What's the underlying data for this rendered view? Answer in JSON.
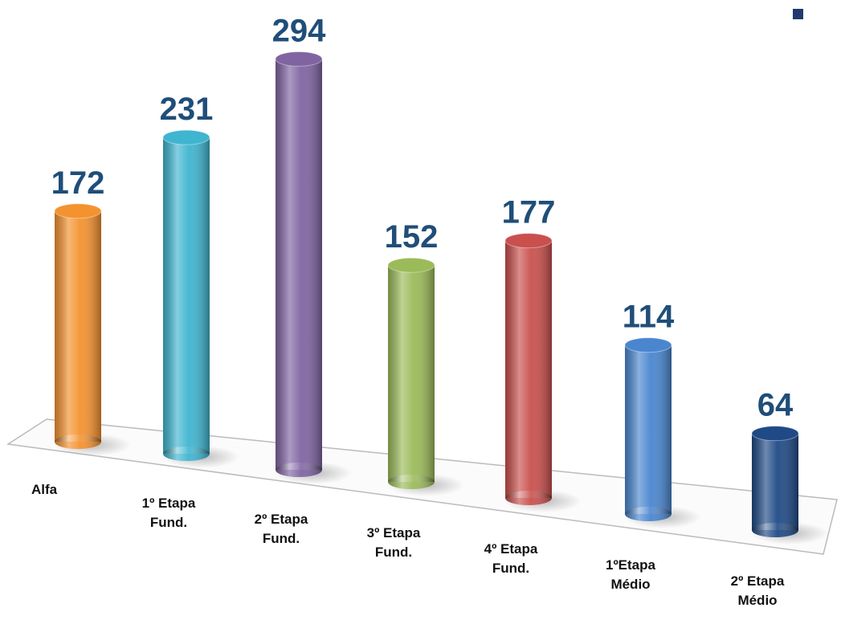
{
  "chart_data": {
    "type": "bar",
    "categories": [
      "Alfa",
      "1º Etapa Fund.",
      "2º Etapa Fund.",
      "3º Etapa Fund.",
      "4º Etapa Fund.",
      "1ºEtapa Médio",
      "2º Etapa Médio"
    ],
    "values": [
      172,
      231,
      294,
      152,
      177,
      114,
      64
    ],
    "colors": [
      "#f4922f",
      "#3fb5d0",
      "#8064a2",
      "#9bbb59",
      "#c9504d",
      "#4a86d0",
      "#1f4a86"
    ],
    "label_color": "#1f4e79"
  }
}
